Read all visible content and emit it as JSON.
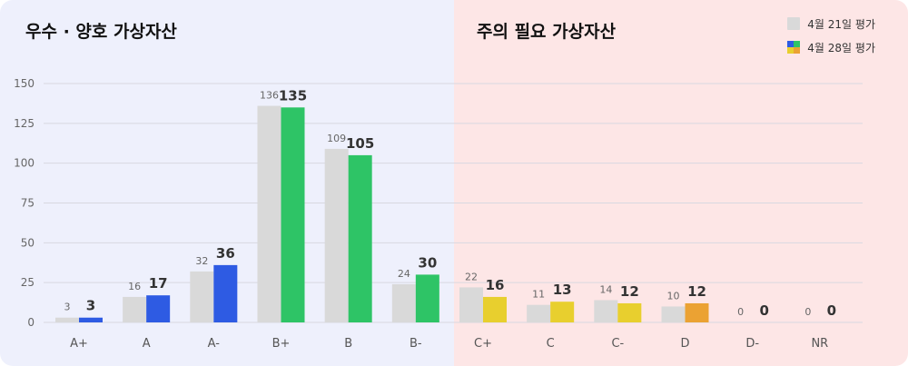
{
  "titles": {
    "good": "우수 · 양호 가상자산",
    "caution": "주의 필요 가상자산"
  },
  "legend": {
    "prev": "4월 21일 평가",
    "curr": "4월 28일 평가"
  },
  "colors": {
    "good_bg": "#eef0fc",
    "caution_bg": "#fde6e6",
    "prev_bar": "#d9d9d9",
    "a_grade": "#2e5be3",
    "b_grade": "#2ec466",
    "c_grade": "#e8cf2e",
    "d_grade": "#eba233",
    "grid": "#d8d8e0",
    "axis_text": "#666666"
  },
  "chart_data": {
    "type": "bar",
    "categories": [
      "A+",
      "A",
      "A-",
      "B+",
      "B",
      "B-",
      "C+",
      "C",
      "C-",
      "D",
      "D-",
      "NR"
    ],
    "series": [
      {
        "name": "4월 21일 평가",
        "values": [
          3,
          16,
          32,
          136,
          109,
          24,
          22,
          11,
          14,
          10,
          0,
          0
        ]
      },
      {
        "name": "4월 28일 평가",
        "values": [
          3,
          17,
          36,
          135,
          105,
          30,
          16,
          13,
          12,
          12,
          0,
          0
        ]
      }
    ],
    "ylim": [
      0,
      150
    ],
    "yticks": [
      "0",
      "25",
      "50",
      "75",
      "100",
      "125",
      "150"
    ],
    "grid": true,
    "legend_position": "top-right"
  }
}
